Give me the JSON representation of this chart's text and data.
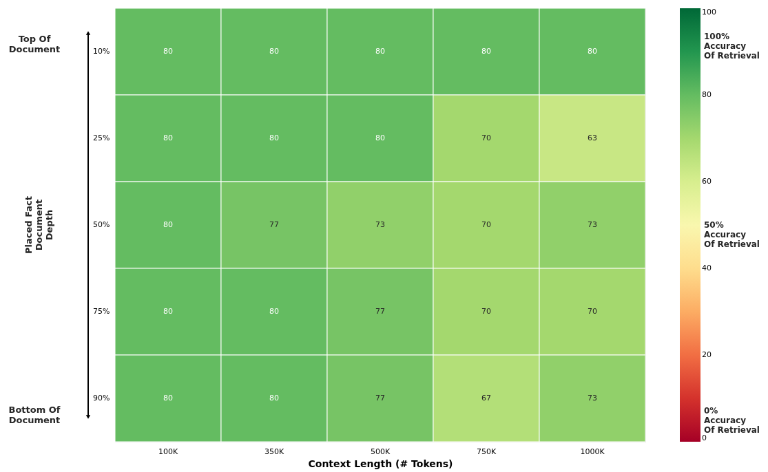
{
  "chart_data": {
    "type": "heatmap",
    "xlabel": "Context Length (# Tokens)",
    "ylabel": "Placed Fact\nDocument\nDepth",
    "categories": [
      "100K",
      "350K",
      "500K",
      "750K",
      "1000K"
    ],
    "y_categories": [
      "10%",
      "25%",
      "50%",
      "75%",
      "90%"
    ],
    "cells": [
      [
        80,
        80,
        80,
        80,
        80
      ],
      [
        80,
        80,
        80,
        70,
        63
      ],
      [
        80,
        77,
        73,
        70,
        73
      ],
      [
        80,
        80,
        77,
        70,
        70
      ],
      [
        80,
        80,
        77,
        67,
        73
      ]
    ],
    "data_labels": true,
    "clim": [
      0,
      100
    ],
    "cticks": [
      0,
      20,
      40,
      60,
      80,
      100
    ],
    "grid": false,
    "annotations": [
      "Top Of\nDocument",
      "Bottom Of\nDocument",
      "100%\nAccuracy\nOf Retrieval",
      "50%\nAccuracy\nOf Retrieval",
      "0%\nAccuracy\nOf Retrieval"
    ]
  }
}
